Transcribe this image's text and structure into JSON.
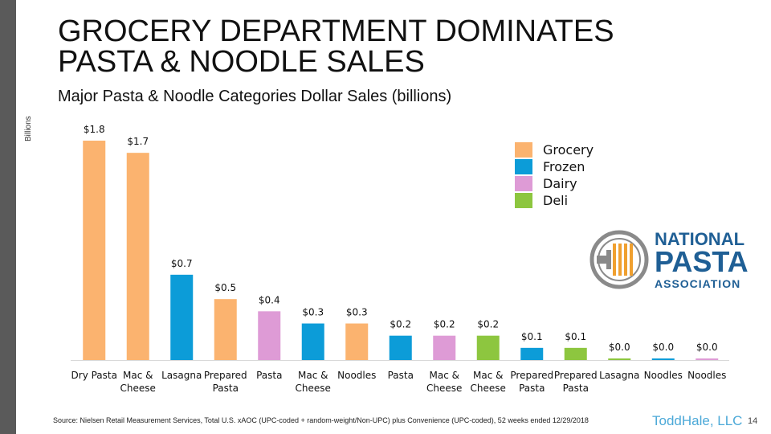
{
  "slide": {
    "title_line1": "GROCERY DEPARTMENT DOMINATES",
    "title_line2": "PASTA & NOODLE SALES",
    "subtitle": "Major Pasta & Noodle Categories Dollar Sales (billions)",
    "source": "Source: Nielsen Retail Measurement Services, Total U.S. xAOC (UPC-coded + random-weight/Non-UPC) plus Convenience (UPC-coded), 52 weeks ended 12/29/2018",
    "brand": "ToddHale, LLC",
    "page_number": "14"
  },
  "logo": {
    "line1": "NATIONAL",
    "line2": "PASTA",
    "line3": "ASSOCIATION",
    "color": "#1f5f95",
    "icon_color": "#8a8a8a",
    "accent_color": "#f0a030"
  },
  "colors": {
    "Grocery": "#FBB36F",
    "Frozen": "#0C9CD8",
    "Dairy": "#DE9BD6",
    "Deli": "#8DC63F"
  },
  "chart_data": {
    "type": "bar",
    "title": "Major Pasta & Noodle Categories Dollar Sales (billions)",
    "ylabel": "Billions",
    "ylim": [
      0,
      1.8
    ],
    "legend": [
      "Grocery",
      "Frozen",
      "Dairy",
      "Deli"
    ],
    "legend_position": "top-right",
    "bars": [
      {
        "category": [
          "Dry Pasta"
        ],
        "department": "Grocery",
        "value": 1.8,
        "label": "$1.8"
      },
      {
        "category": [
          "Mac &",
          "Cheese"
        ],
        "department": "Grocery",
        "value": 1.7,
        "label": "$1.7"
      },
      {
        "category": [
          "Lasagna"
        ],
        "department": "Frozen",
        "value": 0.7,
        "label": "$0.7"
      },
      {
        "category": [
          "Prepared",
          "Pasta"
        ],
        "department": "Grocery",
        "value": 0.5,
        "label": "$0.5"
      },
      {
        "category": [
          "Pasta"
        ],
        "department": "Dairy",
        "value": 0.4,
        "label": "$0.4"
      },
      {
        "category": [
          "Mac &",
          "Cheese"
        ],
        "department": "Frozen",
        "value": 0.3,
        "label": "$0.3"
      },
      {
        "category": [
          "Noodles"
        ],
        "department": "Grocery",
        "value": 0.3,
        "label": "$0.3"
      },
      {
        "category": [
          "Pasta"
        ],
        "department": "Frozen",
        "value": 0.2,
        "label": "$0.2"
      },
      {
        "category": [
          "Mac &",
          "Cheese"
        ],
        "department": "Dairy",
        "value": 0.2,
        "label": "$0.2"
      },
      {
        "category": [
          "Mac &",
          "Cheese"
        ],
        "department": "Deli",
        "value": 0.2,
        "label": "$0.2"
      },
      {
        "category": [
          "Prepared",
          "Pasta"
        ],
        "department": "Frozen",
        "value": 0.1,
        "label": "$0.1"
      },
      {
        "category": [
          "Prepared",
          "Pasta"
        ],
        "department": "Deli",
        "value": 0.1,
        "label": "$0.1"
      },
      {
        "category": [
          "Lasagna"
        ],
        "department": "Deli",
        "value": 0.0,
        "label": "$0.0"
      },
      {
        "category": [
          "Noodles"
        ],
        "department": "Frozen",
        "value": 0.0,
        "label": "$0.0"
      },
      {
        "category": [
          "Noodles"
        ],
        "department": "Dairy",
        "value": 0.0,
        "label": "$0.0"
      }
    ]
  }
}
